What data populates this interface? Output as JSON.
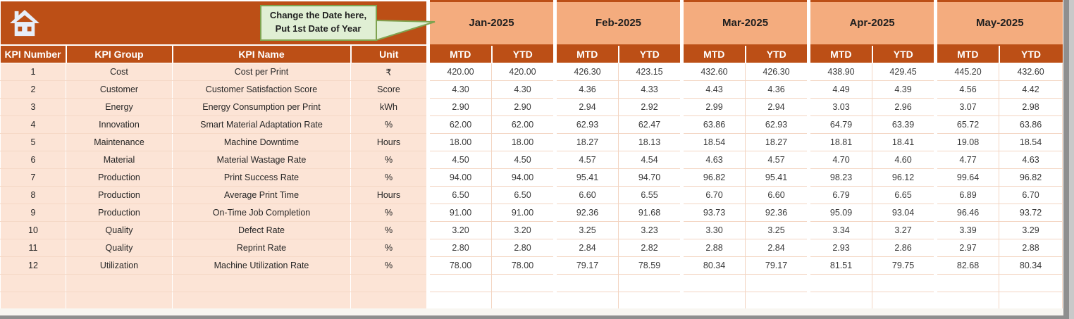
{
  "callout": {
    "line1": "Change the Date here,",
    "line2": "Put 1st Date of Year"
  },
  "months": [
    "Jan-2025",
    "Feb-2025",
    "Mar-2025",
    "Apr-2025",
    "May-2025"
  ],
  "value_headers": [
    "MTD",
    "YTD"
  ],
  "table": {
    "column_headers": [
      "KPI Number",
      "KPI Group",
      "KPI Name",
      "Unit"
    ],
    "rows": [
      {
        "number": "1",
        "group": "Cost",
        "name": "Cost per Print",
        "unit": "₹",
        "values": [
          [
            "420.00",
            "420.00"
          ],
          [
            "426.30",
            "423.15"
          ],
          [
            "432.60",
            "426.30"
          ],
          [
            "438.90",
            "429.45"
          ],
          [
            "445.20",
            "432.60"
          ]
        ]
      },
      {
        "number": "2",
        "group": "Customer",
        "name": "Customer Satisfaction Score",
        "unit": "Score",
        "values": [
          [
            "4.30",
            "4.30"
          ],
          [
            "4.36",
            "4.33"
          ],
          [
            "4.43",
            "4.36"
          ],
          [
            "4.49",
            "4.39"
          ],
          [
            "4.56",
            "4.42"
          ]
        ]
      },
      {
        "number": "3",
        "group": "Energy",
        "name": "Energy Consumption per Print",
        "unit": "kWh",
        "values": [
          [
            "2.90",
            "2.90"
          ],
          [
            "2.94",
            "2.92"
          ],
          [
            "2.99",
            "2.94"
          ],
          [
            "3.03",
            "2.96"
          ],
          [
            "3.07",
            "2.98"
          ]
        ]
      },
      {
        "number": "4",
        "group": "Innovation",
        "name": "Smart Material Adaptation Rate",
        "unit": "%",
        "values": [
          [
            "62.00",
            "62.00"
          ],
          [
            "62.93",
            "62.47"
          ],
          [
            "63.86",
            "62.93"
          ],
          [
            "64.79",
            "63.39"
          ],
          [
            "65.72",
            "63.86"
          ]
        ]
      },
      {
        "number": "5",
        "group": "Maintenance",
        "name": "Machine Downtime",
        "unit": "Hours",
        "values": [
          [
            "18.00",
            "18.00"
          ],
          [
            "18.27",
            "18.13"
          ],
          [
            "18.54",
            "18.27"
          ],
          [
            "18.81",
            "18.41"
          ],
          [
            "19.08",
            "18.54"
          ]
        ]
      },
      {
        "number": "6",
        "group": "Material",
        "name": "Material Wastage Rate",
        "unit": "%",
        "values": [
          [
            "4.50",
            "4.50"
          ],
          [
            "4.57",
            "4.54"
          ],
          [
            "4.63",
            "4.57"
          ],
          [
            "4.70",
            "4.60"
          ],
          [
            "4.77",
            "4.63"
          ]
        ]
      },
      {
        "number": "7",
        "group": "Production",
        "name": "Print Success Rate",
        "unit": "%",
        "values": [
          [
            "94.00",
            "94.00"
          ],
          [
            "95.41",
            "94.70"
          ],
          [
            "96.82",
            "95.41"
          ],
          [
            "98.23",
            "96.12"
          ],
          [
            "99.64",
            "96.82"
          ]
        ]
      },
      {
        "number": "8",
        "group": "Production",
        "name": "Average Print Time",
        "unit": "Hours",
        "values": [
          [
            "6.50",
            "6.50"
          ],
          [
            "6.60",
            "6.55"
          ],
          [
            "6.70",
            "6.60"
          ],
          [
            "6.79",
            "6.65"
          ],
          [
            "6.89",
            "6.70"
          ]
        ]
      },
      {
        "number": "9",
        "group": "Production",
        "name": "On-Time Job Completion",
        "unit": "%",
        "values": [
          [
            "91.00",
            "91.00"
          ],
          [
            "92.36",
            "91.68"
          ],
          [
            "93.73",
            "92.36"
          ],
          [
            "95.09",
            "93.04"
          ],
          [
            "96.46",
            "93.72"
          ]
        ]
      },
      {
        "number": "10",
        "group": "Quality",
        "name": "Defect Rate",
        "unit": "%",
        "values": [
          [
            "3.20",
            "3.20"
          ],
          [
            "3.25",
            "3.23"
          ],
          [
            "3.30",
            "3.25"
          ],
          [
            "3.34",
            "3.27"
          ],
          [
            "3.39",
            "3.29"
          ]
        ]
      },
      {
        "number": "11",
        "group": "Quality",
        "name": "Reprint Rate",
        "unit": "%",
        "values": [
          [
            "2.80",
            "2.80"
          ],
          [
            "2.84",
            "2.82"
          ],
          [
            "2.88",
            "2.84"
          ],
          [
            "2.93",
            "2.86"
          ],
          [
            "2.97",
            "2.88"
          ]
        ]
      },
      {
        "number": "12",
        "group": "Utilization",
        "name": "Machine Utilization Rate",
        "unit": "%",
        "values": [
          [
            "78.00",
            "78.00"
          ],
          [
            "79.17",
            "78.59"
          ],
          [
            "80.34",
            "79.17"
          ],
          [
            "81.51",
            "79.75"
          ],
          [
            "82.68",
            "80.34"
          ]
        ]
      }
    ],
    "empty_row_count": 2
  },
  "icons": {
    "home": "home-icon",
    "callout_arrow": "callout-arrow-icon"
  },
  "colors": {
    "rust": "#BC4F16",
    "salmon": "#F4AC7E",
    "band": "#FCE4D6",
    "callout_fill": "#E0EFD4",
    "callout_border": "#7FA350",
    "edge_gray": "#8F8F8F"
  }
}
